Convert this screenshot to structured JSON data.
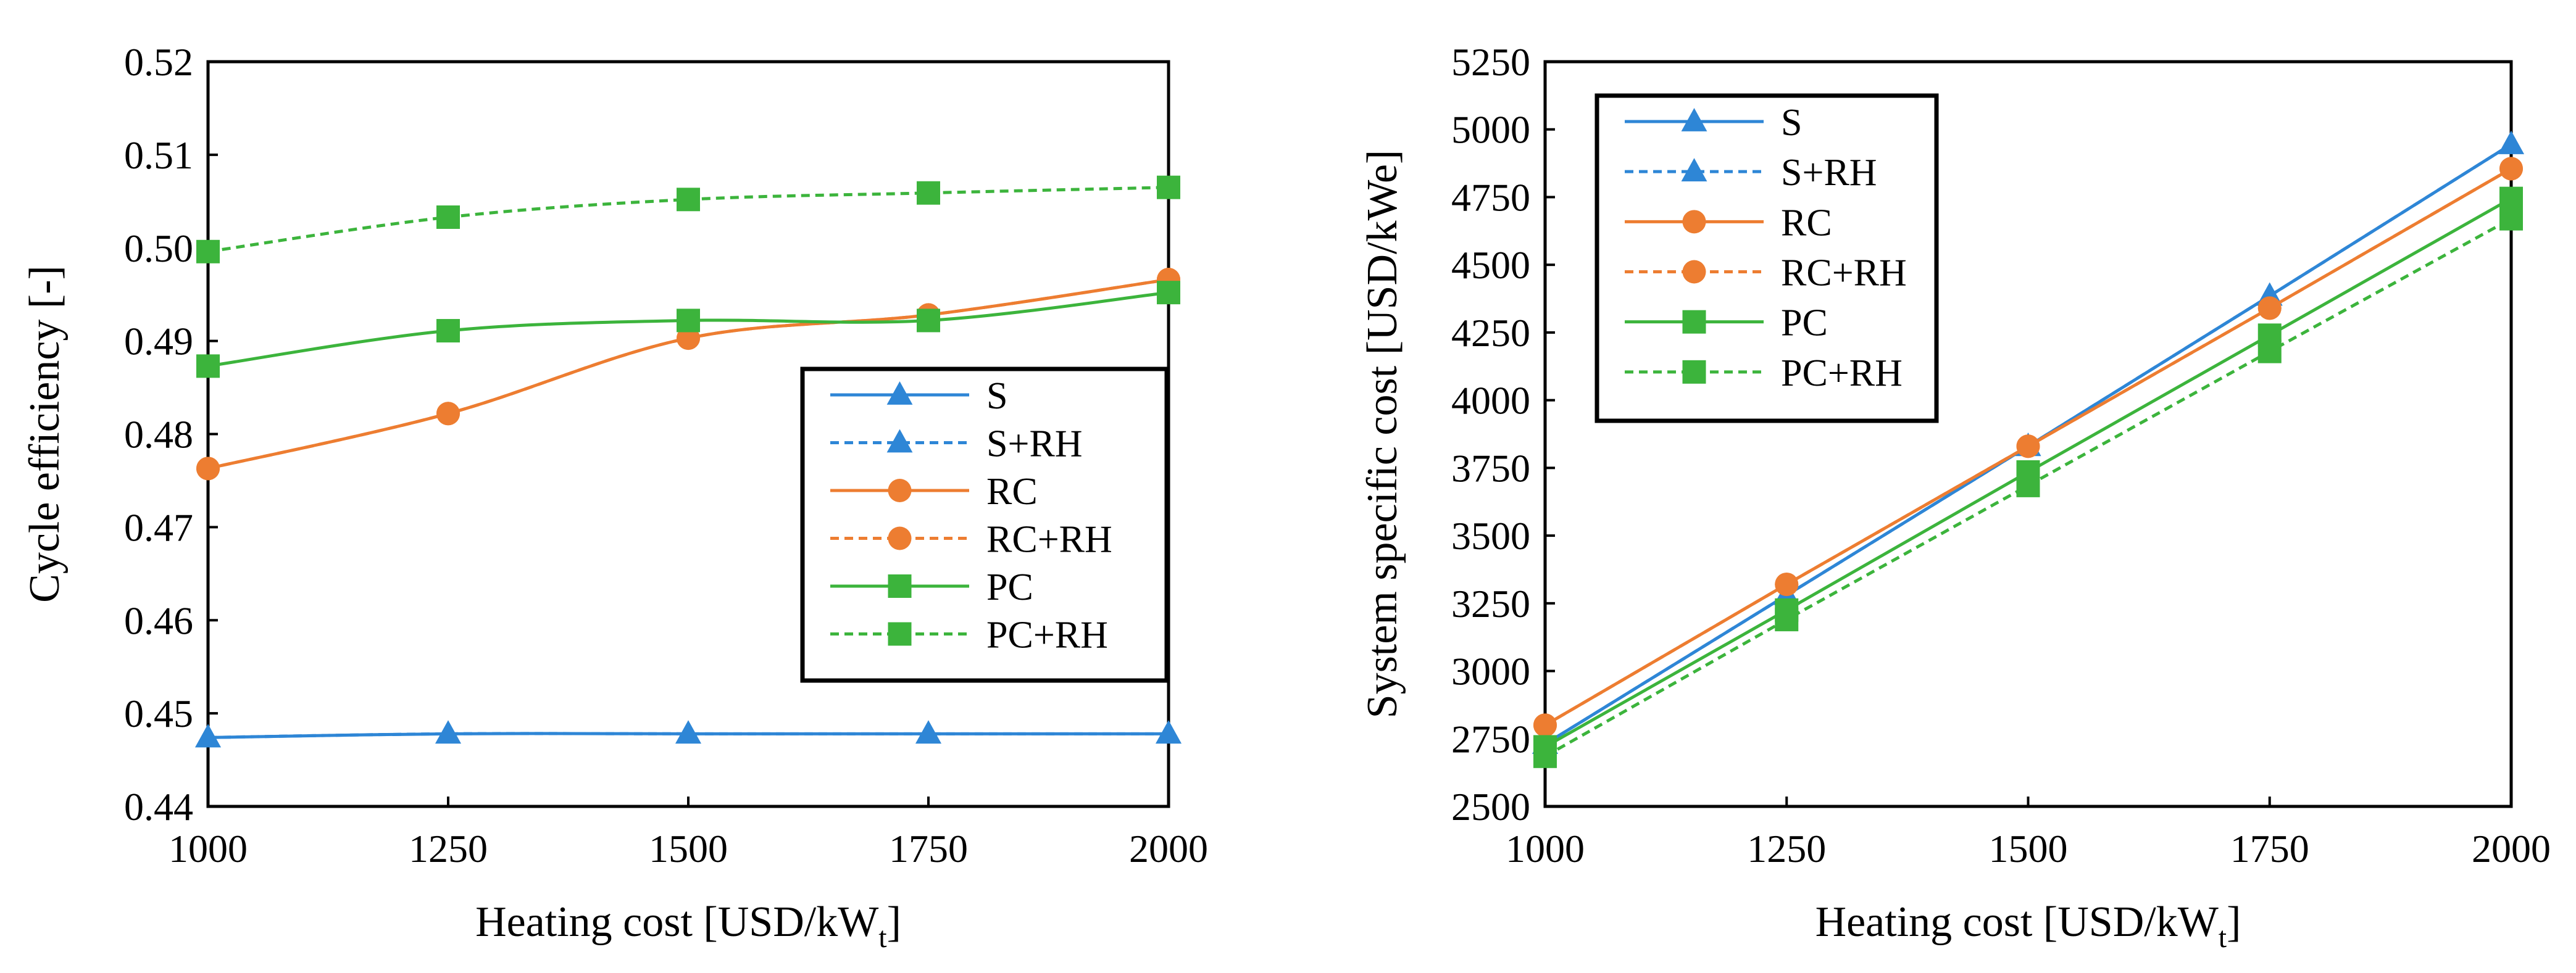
{
  "series_styles": [
    {
      "name": "S",
      "color": "#2E86D6",
      "marker": "triangle",
      "dash": false
    },
    {
      "name": "S+RH",
      "color": "#2E86D6",
      "marker": "triangle",
      "dash": true
    },
    {
      "name": "RC",
      "color": "#ED7D31",
      "marker": "circle",
      "dash": false
    },
    {
      "name": "RC+RH",
      "color": "#ED7D31",
      "marker": "circle",
      "dash": true
    },
    {
      "name": "PC",
      "color": "#3CB43C",
      "marker": "square",
      "dash": false
    },
    {
      "name": "PC+RH",
      "color": "#3CB43C",
      "marker": "square",
      "dash": true
    }
  ],
  "chart_data": [
    {
      "type": "line",
      "title": "",
      "xlabel": "Heating cost [USD/kW",
      "xlabel_sub": "t",
      "xlabel_suffix": "]",
      "ylabel": "Cycle efficiency [-]",
      "x": [
        1000,
        1250,
        1500,
        1750,
        2000
      ],
      "xlim": [
        1000,
        2000
      ],
      "ylim": [
        0.44,
        0.52
      ],
      "xticks": [
        "1000",
        "1250",
        "1500",
        "1750",
        "2000"
      ],
      "yticks": [
        "0.44",
        "0.45",
        "0.46",
        "0.47",
        "0.48",
        "0.49",
        "0.50",
        "0.51",
        "0.52"
      ],
      "legend_position": "center-right",
      "series": [
        {
          "name": "S",
          "values": [
            0.4474,
            0.4478,
            0.4478,
            0.4478,
            0.4478
          ]
        },
        {
          "name": "S+RH",
          "values": [
            0.4474,
            0.4478,
            0.4478,
            0.4478,
            0.4478
          ]
        },
        {
          "name": "RC",
          "values": [
            0.4763,
            0.4822,
            0.4903,
            0.4928,
            0.4966
          ]
        },
        {
          "name": "RC+RH",
          "values": [
            0.4763,
            0.4822,
            0.4903,
            0.4928,
            0.4966
          ]
        },
        {
          "name": "PC",
          "values": [
            0.4873,
            0.4911,
            0.4922,
            0.4922,
            0.4952
          ]
        },
        {
          "name": "PC+RH",
          "values": [
            0.4996,
            0.5033,
            0.5052,
            0.5059,
            0.5065
          ]
        }
      ]
    },
    {
      "type": "line",
      "title": "",
      "xlabel": "Heating cost [USD/kW",
      "xlabel_sub": "t",
      "xlabel_suffix": "]",
      "ylabel": "System specific cost [USD/kWe]",
      "x": [
        1000,
        1250,
        1500,
        1750,
        2000
      ],
      "xlim": [
        1000,
        2000
      ],
      "ylim": [
        2500,
        5250
      ],
      "xticks": [
        "1000",
        "1250",
        "1500",
        "1750",
        "2000"
      ],
      "yticks": [
        "2500",
        "2750",
        "3000",
        "3250",
        "3500",
        "3750",
        "4000",
        "4250",
        "4500",
        "4750",
        "5000",
        "5250"
      ],
      "legend_position": "top-left",
      "series": [
        {
          "name": "S",
          "values": [
            2730,
            3280,
            3830,
            4385,
            4945
          ]
        },
        {
          "name": "S+RH",
          "values": [
            2730,
            3280,
            3830,
            4385,
            4945
          ]
        },
        {
          "name": "RC",
          "values": [
            2800,
            3320,
            3830,
            4340,
            4855
          ]
        },
        {
          "name": "RC+RH",
          "values": [
            2800,
            3320,
            3830,
            4340,
            4855
          ]
        },
        {
          "name": "PC",
          "values": [
            2720,
            3225,
            3735,
            4240,
            4745
          ]
        },
        {
          "name": "PC+RH",
          "values": [
            2685,
            3190,
            3685,
            4180,
            4670
          ]
        }
      ]
    }
  ]
}
